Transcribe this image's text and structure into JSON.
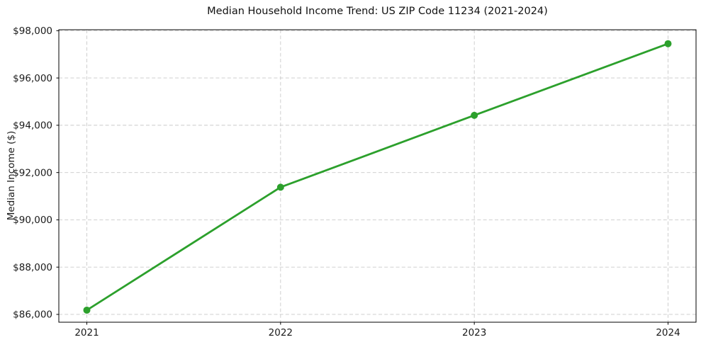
{
  "chart_data": {
    "type": "line",
    "title": "Median Household Income Trend: US ZIP Code 11234 (2021-2024)",
    "xlabel": "",
    "ylabel": "Median Income ($)",
    "categories": [
      "2021",
      "2022",
      "2023",
      "2024"
    ],
    "series": [
      {
        "name": "Median Household Income",
        "values": [
          86180,
          91380,
          94420,
          97450
        ],
        "color": "#2ca02c",
        "marker": "circle"
      }
    ],
    "ylim": [
      85670,
      98040
    ],
    "y_ticks": [
      86000,
      88000,
      90000,
      92000,
      94000,
      96000,
      98000
    ],
    "y_tick_labels": [
      "$86,000",
      "$88,000",
      "$90,000",
      "$92,000",
      "$94,000",
      "$96,000",
      "$98,000"
    ],
    "grid": true,
    "grid_style": "dashed",
    "legend_position": "none",
    "colors": {
      "line": "#2ca02c",
      "grid": "#c9c9c9",
      "axis": "#000000",
      "tick_text": "#1a1a1a",
      "background": "#ffffff"
    }
  }
}
